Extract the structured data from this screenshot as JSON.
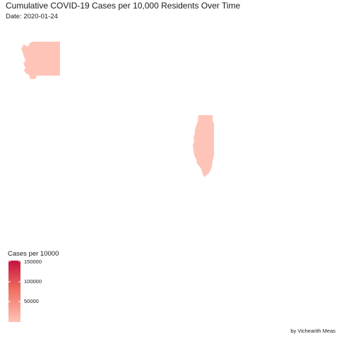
{
  "title": "Cumulative COVID-19 Cases per 10,000 Residents Over Time",
  "subtitle": "Date: 2020-01-24",
  "legend": {
    "title": "Cases per 10000",
    "ticks": [
      "150000",
      "100000",
      "50000"
    ],
    "color_low": "#ffc4b8",
    "color_high": "#c5123e"
  },
  "regions": [
    {
      "name": "Washington",
      "fill": "#ffc4b8"
    },
    {
      "name": "Illinois",
      "fill": "#ffc4b8"
    }
  ],
  "caption": "by Vichearith Meas"
}
